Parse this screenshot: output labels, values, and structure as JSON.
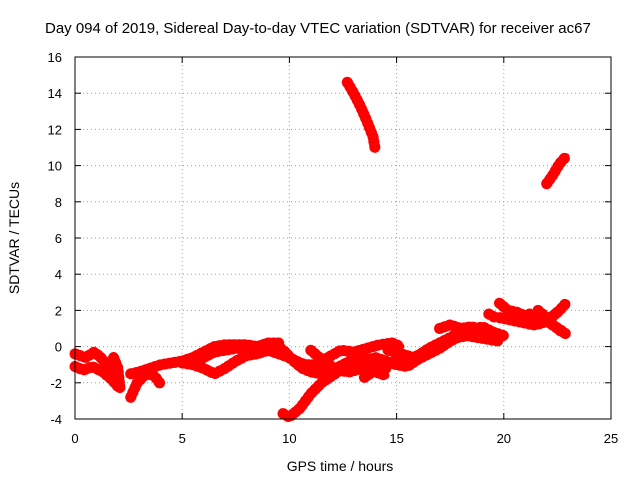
{
  "chart_data": {
    "type": "scatter",
    "title": "Day 094 of 2019, Sidereal Day-to-day VTEC variation (SDTVAR) for receiver ac67",
    "xlabel": "GPS time / hours",
    "ylabel": "SDTVAR / TECUs",
    "xlim": [
      0,
      25
    ],
    "ylim": [
      -4,
      16
    ],
    "x_ticks": [
      "0",
      "5",
      "10",
      "15",
      "20",
      "25"
    ],
    "y_ticks": [
      "-4",
      "-2",
      "0",
      "2",
      "4",
      "6",
      "8",
      "10",
      "12",
      "14",
      "16"
    ],
    "x_tick_values": [
      0,
      5,
      10,
      15,
      20,
      25
    ],
    "y_tick_values": [
      -4,
      -2,
      0,
      2,
      4,
      6,
      8,
      10,
      12,
      14,
      16
    ],
    "grid": true,
    "color": "#ff0000",
    "series": [
      {
        "x": [
          0.0,
          0.5,
          0.9,
          1.2,
          1.5,
          1.9
        ],
        "y": [
          -0.4,
          -0.6,
          -0.3,
          -0.6,
          -1.0,
          -1.5
        ]
      },
      {
        "x": [
          0.0,
          0.4,
          0.8,
          1.3,
          1.7,
          2.0
        ],
        "y": [
          -1.1,
          -1.3,
          -1.1,
          -1.4,
          -1.8,
          -2.2
        ]
      },
      {
        "x": [
          1.8,
          2.0,
          2.1
        ],
        "y": [
          -0.6,
          -1.2,
          -2.3
        ]
      },
      {
        "x": [
          2.6,
          2.9,
          3.3,
          3.7,
          4.0
        ],
        "y": [
          -2.8,
          -2.0,
          -1.5,
          -1.6,
          -2.1
        ]
      },
      {
        "x": [
          2.6,
          3.0,
          3.5,
          4.0,
          4.5,
          5.0,
          5.5,
          6.0,
          6.5,
          7.0,
          7.5,
          8.0,
          8.5,
          9.0,
          9.4
        ],
        "y": [
          -1.5,
          -1.4,
          -1.2,
          -1.0,
          -0.9,
          -0.8,
          -0.7,
          -0.6,
          -0.3,
          -0.2,
          -0.1,
          0.0,
          0.0,
          0.1,
          0.1
        ]
      },
      {
        "x": [
          5.0,
          5.5,
          6.0,
          6.5,
          7.0,
          7.5,
          8.0,
          8.5,
          9.0,
          9.5
        ],
        "y": [
          -0.8,
          -0.6,
          -0.3,
          0.0,
          0.1,
          0.1,
          0.1,
          0.0,
          0.2,
          0.2
        ]
      },
      {
        "x": [
          5.0,
          5.5,
          6.0,
          6.5,
          7.0,
          7.5,
          8.0,
          8.5,
          9.0,
          9.5,
          10.0,
          10.5,
          11.0,
          11.5
        ],
        "y": [
          -0.9,
          -1.0,
          -1.2,
          -1.5,
          -1.2,
          -0.8,
          -0.5,
          -0.4,
          -0.2,
          -0.4,
          -0.6,
          -0.9,
          -1.1,
          -1.3
        ]
      },
      {
        "x": [
          9.4,
          9.8,
          10.2,
          10.6,
          11.0,
          11.5,
          12.0,
          12.5,
          13.0,
          13.5,
          14.0,
          14.5
        ],
        "y": [
          0.1,
          -0.3,
          -0.8,
          -1.2,
          -1.4,
          -1.5,
          -1.3,
          -1.0,
          -0.7,
          -0.6,
          -0.9,
          -1.2
        ]
      },
      {
        "x": [
          9.6,
          10.1,
          10.6,
          11.2,
          11.8,
          12.4,
          13.0,
          13.6,
          14.2,
          14.8,
          15.2
        ],
        "y": [
          -0.3,
          -0.7,
          -1.0,
          -1.0,
          -0.6,
          -0.2,
          -0.3,
          -0.1,
          0.1,
          0.2,
          0.0
        ]
      },
      {
        "x": [
          9.7,
          10.0,
          10.5,
          11.0,
          11.5,
          12.0,
          12.5,
          13.0,
          13.5,
          14.0,
          14.5,
          15.0,
          15.5,
          16.0,
          16.5,
          17.0,
          17.5,
          18.0,
          18.5,
          19.0,
          19.5,
          20.0
        ],
        "y": [
          -3.7,
          -3.9,
          -3.4,
          -2.6,
          -2.0,
          -1.6,
          -1.2,
          -1.0,
          -0.8,
          -0.6,
          -0.8,
          -1.0,
          -1.1,
          -0.7,
          -0.4,
          -0.1,
          0.3,
          0.6,
          0.9,
          1.1,
          0.8,
          0.6
        ]
      },
      {
        "x": [
          11.0,
          11.6,
          12.2,
          12.8,
          13.4,
          14.0,
          14.5
        ],
        "y": [
          -0.2,
          -0.8,
          -1.3,
          -1.4,
          -1.2,
          -1.4,
          -1.6
        ]
      },
      {
        "x": [
          13.5,
          14.0,
          14.5,
          15.0,
          15.5,
          16.0,
          16.5,
          17.0,
          17.5,
          18.0,
          18.5,
          19.0,
          19.5
        ],
        "y": [
          -1.7,
          -1.3,
          -1.0,
          -0.8,
          -0.9,
          -0.5,
          -0.1,
          0.2,
          0.5,
          0.8,
          1.0,
          0.9,
          0.7
        ]
      },
      {
        "x": [
          14.6,
          15.2,
          15.8,
          16.3,
          16.8,
          17.3,
          17.8,
          18.3,
          18.8,
          19.3,
          19.8
        ],
        "y": [
          -0.2,
          -0.4,
          -0.6,
          -0.3,
          -0.1,
          0.3,
          0.5,
          0.6,
          0.5,
          0.4,
          0.3
        ]
      },
      {
        "x": [
          17.0,
          17.5,
          18.0,
          18.5,
          19.0
        ],
        "y": [
          1.0,
          1.2,
          1.0,
          1.1,
          0.9
        ]
      },
      {
        "x": [
          19.3,
          19.6
        ],
        "y": [
          1.8,
          1.6
        ]
      },
      {
        "x": [
          19.8,
          20.2,
          20.6,
          21.0,
          21.4,
          21.8,
          22.2,
          22.6,
          22.9
        ],
        "y": [
          2.4,
          2.0,
          1.9,
          1.7,
          1.5,
          1.4,
          1.6,
          2.0,
          2.4
        ]
      },
      {
        "x": [
          19.8,
          20.2,
          20.6,
          21.0,
          21.4,
          21.8,
          22.2,
          22.5
        ],
        "y": [
          1.6,
          1.5,
          1.4,
          1.3,
          1.2,
          1.3,
          1.6,
          1.9
        ]
      },
      {
        "x": [
          21.2,
          21.6,
          22.0,
          22.4,
          22.8
        ],
        "y": [
          1.8,
          1.6,
          1.4,
          1.1,
          0.8
        ]
      },
      {
        "x": [
          21.6,
          22.0,
          22.3,
          22.6,
          22.9
        ],
        "y": [
          2.0,
          1.6,
          1.2,
          0.9,
          0.7
        ]
      },
      {
        "x": [
          12.7,
          13.0,
          13.3,
          13.6,
          13.9,
          14.0
        ],
        "y": [
          14.6,
          14.0,
          13.3,
          12.5,
          11.6,
          10.9
        ]
      },
      {
        "x": [
          22.0,
          22.3,
          22.6,
          22.9
        ],
        "y": [
          9.0,
          9.5,
          10.1,
          10.5
        ]
      }
    ]
  }
}
